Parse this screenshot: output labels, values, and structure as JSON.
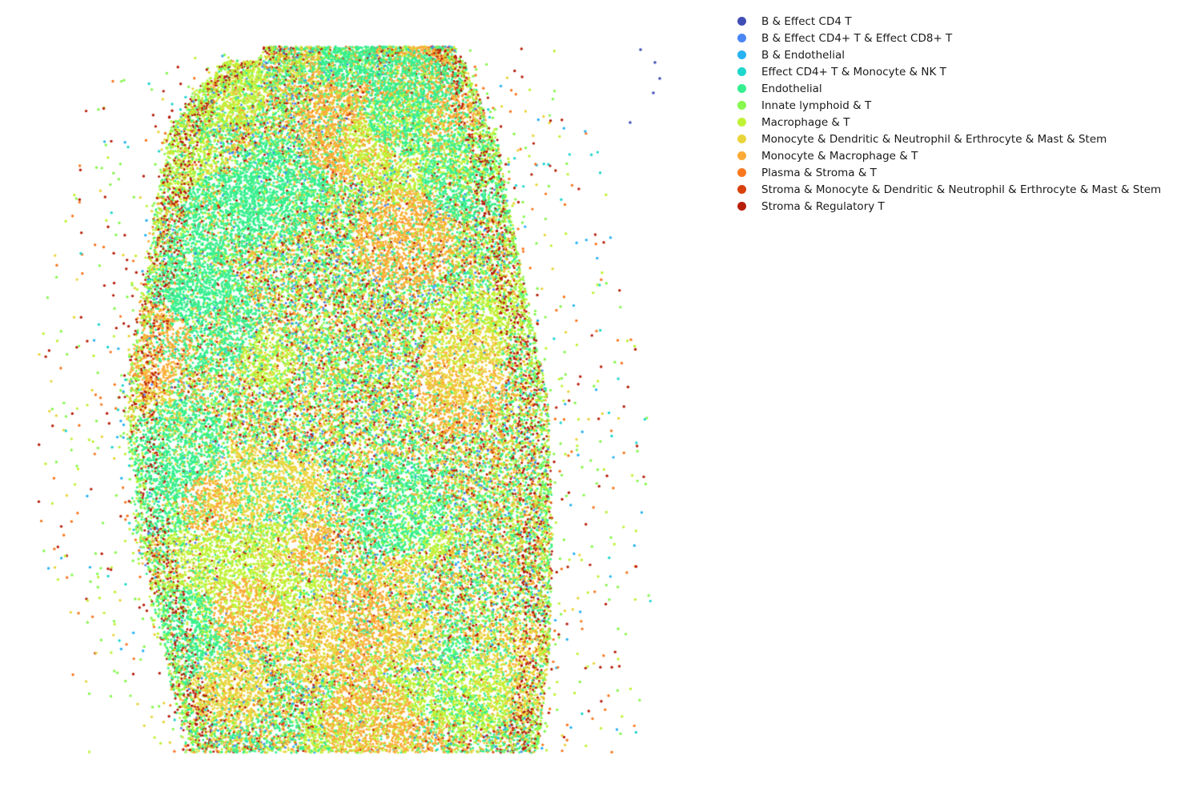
{
  "chart_data": {
    "type": "scatter",
    "title": "",
    "xlabel": "",
    "ylabel": "",
    "axes_visible": false,
    "grid": false,
    "legend_placement": "outside-top-right",
    "total_points_approx": 80000,
    "xlim": [
      0,
      900
    ],
    "ylim": [
      0,
      1000
    ],
    "series": [
      {
        "name": "B & Effect CD4 T",
        "color": "#3f4db5",
        "share": 0.0008
      },
      {
        "name": "B & Effect CD4+ T & Effect CD8+ T",
        "color": "#4a87f5",
        "share": 0.035
      },
      {
        "name": "B & Endothelial",
        "color": "#28b2f2",
        "share": 0.02
      },
      {
        "name": "Effect CD4+ T & Monocyte & NK T",
        "color": "#1dd6cc",
        "share": 0.006
      },
      {
        "name": "Endothelial",
        "color": "#35ef8e",
        "share": 0.29
      },
      {
        "name": "Innate lymphoid & T",
        "color": "#86f84e",
        "share": 0.09
      },
      {
        "name": "Macrophage & T",
        "color": "#c0f236",
        "share": 0.14
      },
      {
        "name": "Monocyte & Dendritic & Neutrophil & Erthrocyte & Mast & Stem",
        "color": "#ead43c",
        "share": 0.11
      },
      {
        "name": "Monocyte & Macrophage & T",
        "color": "#fbab36",
        "share": 0.18
      },
      {
        "name": "Plasma & Stroma & T",
        "color": "#f97820",
        "share": 0.025
      },
      {
        "name": "Stroma & Monocyte & Dendritic & Neutrophil & Erthrocyte & Mast & Stem",
        "color": "#d9410c",
        "share": 0.01
      },
      {
        "name": "Stroma & Regulatory T",
        "color": "#b81f0b",
        "share": 0.085
      }
    ]
  }
}
